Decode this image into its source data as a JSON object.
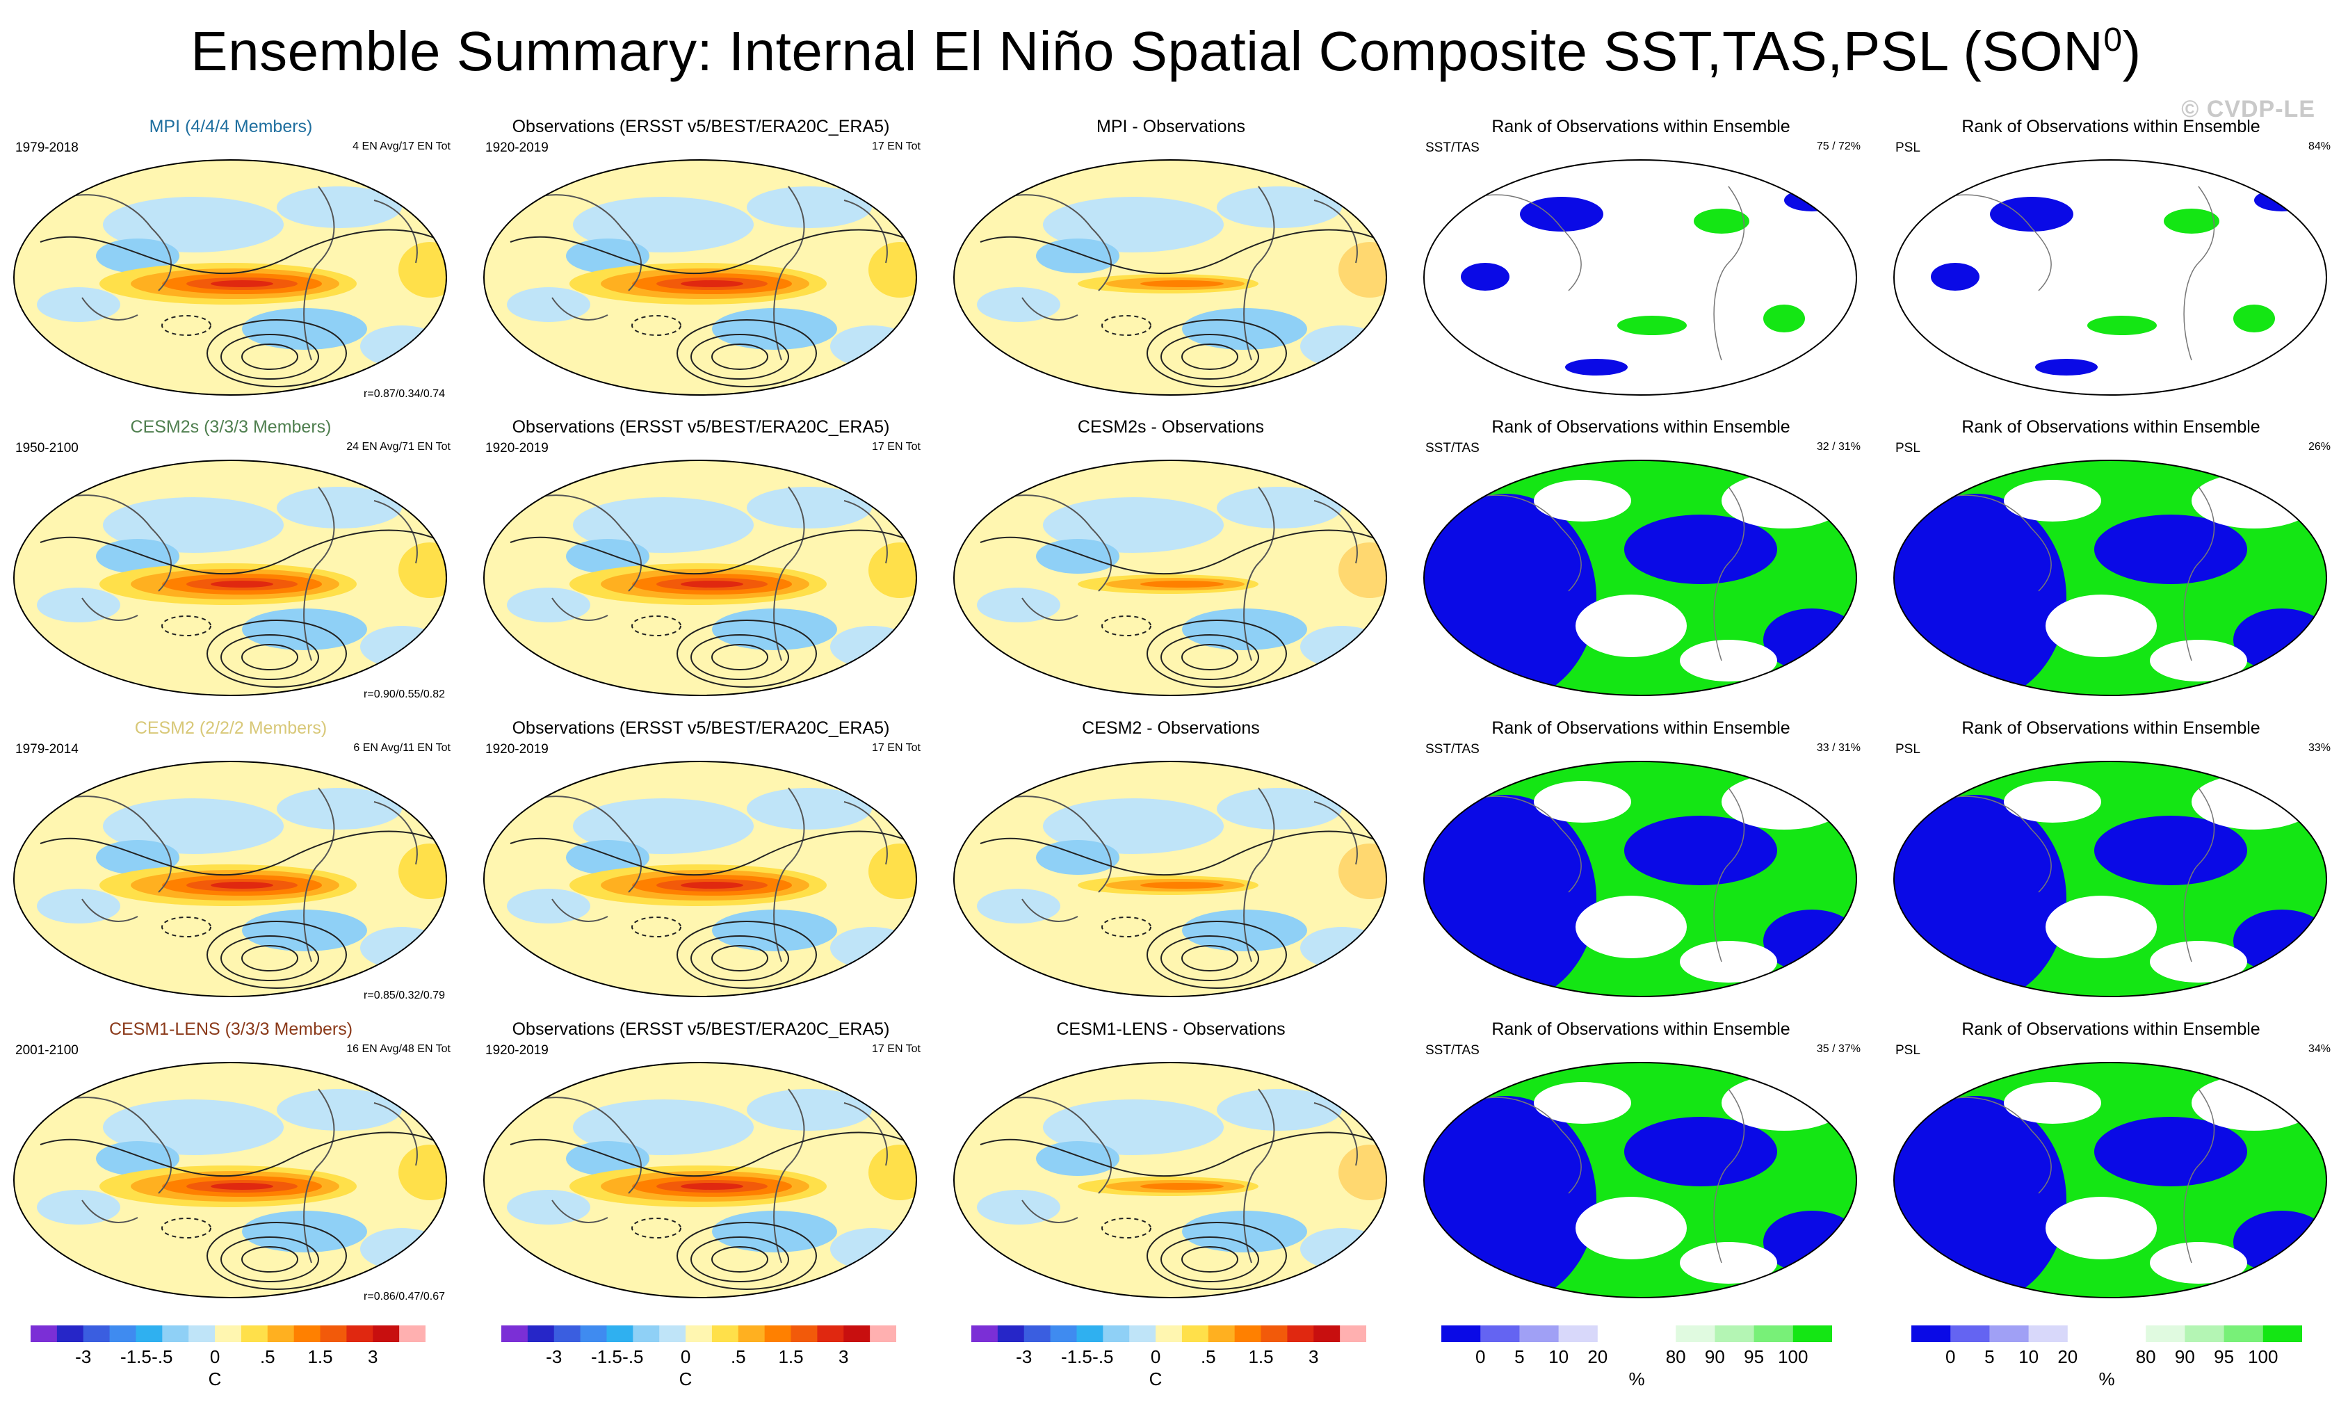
{
  "title": "Ensemble Summary: Internal El Niño Spatial Composite SST,TAS,PSL (SON",
  "title_sup": "0",
  "title_close": ")",
  "watermark": "© CVDP-LE",
  "rows": [
    {
      "model": {
        "title": "MPI (4/4/4 Members)",
        "color": "#1f6f9f",
        "years": "1979-2018",
        "count": "4 EN Avg/17 EN Tot",
        "corr": "r=0.87/0.34/0.74"
      },
      "obs": {
        "title": "Observations (ERSST v5/BEST/ERA20C_ERA5)",
        "years": "1920-2019",
        "count": "17 EN Tot"
      },
      "diff": {
        "title": "MPI - Observations"
      },
      "rank1": {
        "title": "Rank of Observations within Ensemble",
        "label": "SST/TAS",
        "pct": "75 /  72%"
      },
      "rank2": {
        "title": "Rank of Observations within Ensemble",
        "label": "PSL",
        "pct": "84%"
      }
    },
    {
      "model": {
        "title": "CESM2s (3/3/3 Members)",
        "color": "#4f7f4f",
        "years": "1950-2100",
        "count": "24 EN Avg/71 EN Tot",
        "corr": "r=0.90/0.55/0.82"
      },
      "obs": {
        "title": "Observations (ERSST v5/BEST/ERA20C_ERA5)",
        "years": "1920-2019",
        "count": "17 EN Tot"
      },
      "diff": {
        "title": "CESM2s - Observations"
      },
      "rank1": {
        "title": "Rank of Observations within Ensemble",
        "label": "SST/TAS",
        "pct": "32 /  31%"
      },
      "rank2": {
        "title": "Rank of Observations within Ensemble",
        "label": "PSL",
        "pct": "26%"
      }
    },
    {
      "model": {
        "title": "CESM2 (2/2/2 Members)",
        "color": "#d8c878",
        "years": "1979-2014",
        "count": "6 EN Avg/11 EN Tot",
        "corr": "r=0.85/0.32/0.79"
      },
      "obs": {
        "title": "Observations (ERSST v5/BEST/ERA20C_ERA5)",
        "years": "1920-2019",
        "count": "17 EN Tot"
      },
      "diff": {
        "title": "CESM2 - Observations"
      },
      "rank1": {
        "title": "Rank of Observations within Ensemble",
        "label": "SST/TAS",
        "pct": "33 /  31%"
      },
      "rank2": {
        "title": "Rank of Observations within Ensemble",
        "label": "PSL",
        "pct": "33%"
      }
    },
    {
      "model": {
        "title": "CESM1-LENS (3/3/3 Members)",
        "color": "#8b3a1a",
        "years": "2001-2100",
        "count": "16 EN Avg/48 EN Tot",
        "corr": "r=0.86/0.47/0.67"
      },
      "obs": {
        "title": "Observations (ERSST v5/BEST/ERA20C_ERA5)",
        "years": "1920-2019",
        "count": "17 EN Tot"
      },
      "diff": {
        "title": "CESM1-LENS - Observations"
      },
      "rank1": {
        "title": "Rank of Observations within Ensemble",
        "label": "SST/TAS",
        "pct": "35 /  37%"
      },
      "rank2": {
        "title": "Rank of Observations within Ensemble",
        "label": "PSL",
        "pct": "34%"
      }
    }
  ],
  "colorbars": {
    "anom": {
      "colors": [
        "#7b2fd6",
        "#2626c8",
        "#3a5ee0",
        "#3f8bf0",
        "#2fb0f0",
        "#8fd0f6",
        "#bfe4f8",
        "#fff6b0",
        "#ffe04a",
        "#ffb020",
        "#ff8000",
        "#f25a0a",
        "#e02810",
        "#c80f0f",
        "#ffb0b0"
      ],
      "ticks": [
        "-3",
        "-1.5",
        "-.5",
        "0",
        ".5",
        "1.5",
        "3"
      ],
      "unit": "C"
    },
    "rank": {
      "colors": [
        "#0a0ae6",
        "#6464f2",
        "#a0a0f5",
        "#d8d8fa",
        "#ffffff",
        "#ffffff",
        "#e0fae0",
        "#b4f5b4",
        "#78f078",
        "#14e614"
      ],
      "ticks": [
        "0",
        "5",
        "10",
        "20",
        "80",
        "90",
        "95",
        "100"
      ],
      "unit": "%"
    }
  }
}
